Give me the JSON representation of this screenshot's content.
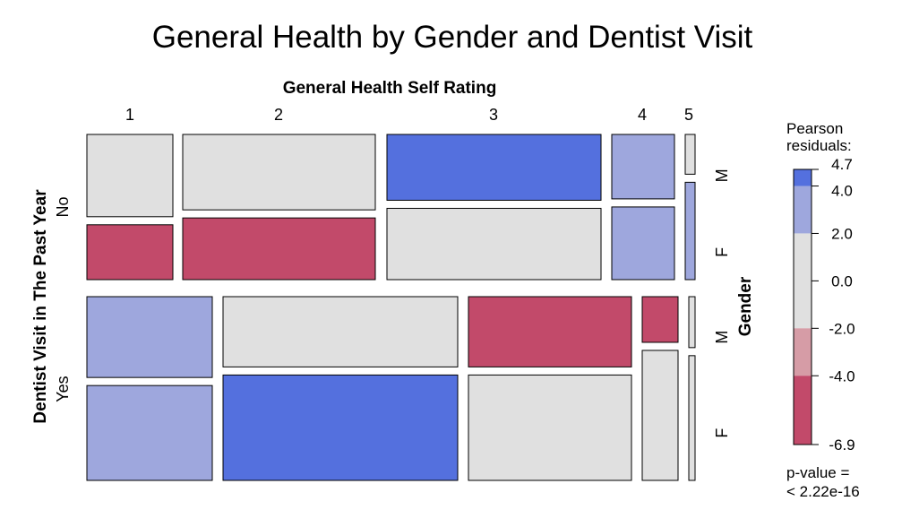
{
  "chart_data": {
    "type": "mosaic",
    "title": "General Health by Gender and Dentist Visit",
    "top_axis_label": "General Health Self Rating",
    "left_axis_label": "Dentist Visit in The Past Year",
    "right_axis_label": "Gender",
    "columns": [
      "1",
      "2",
      "3",
      "4",
      "5"
    ],
    "rows": [
      "No",
      "Yes"
    ],
    "genders": [
      "M",
      "F"
    ],
    "residual_colors": {
      "strong_positive": "#5470de",
      "positive": "#9ea7dd",
      "neutral": "#e0e0e0",
      "negative": "#d69ca6",
      "strong_negative": "#c24a6a"
    },
    "panels": [
      {
        "row": "No",
        "cells": [
          {
            "column": "1",
            "M": {
              "share": 0.6,
              "residual": "neutral"
            },
            "F": {
              "share": 0.4,
              "residual": "strong_negative"
            }
          },
          {
            "column": "2",
            "M": {
              "share": 0.55,
              "residual": "neutral"
            },
            "F": {
              "share": 0.45,
              "residual": "strong_negative"
            }
          },
          {
            "column": "3",
            "M": {
              "share": 0.48,
              "residual": "strong_positive"
            },
            "F": {
              "share": 0.52,
              "residual": "neutral"
            }
          },
          {
            "column": "4",
            "M": {
              "share": 0.47,
              "residual": "positive"
            },
            "F": {
              "share": 0.53,
              "residual": "positive"
            }
          },
          {
            "column": "5",
            "M": {
              "share": 0.29,
              "residual": "neutral"
            },
            "F": {
              "share": 0.71,
              "residual": "positive"
            }
          }
        ]
      },
      {
        "row": "Yes",
        "cells": [
          {
            "column": "1",
            "M": {
              "share": 0.46,
              "residual": "positive"
            },
            "F": {
              "share": 0.54,
              "residual": "positive"
            }
          },
          {
            "column": "2",
            "M": {
              "share": 0.4,
              "residual": "neutral"
            },
            "F": {
              "share": 0.6,
              "residual": "strong_positive"
            }
          },
          {
            "column": "3",
            "M": {
              "share": 0.4,
              "residual": "strong_negative"
            },
            "F": {
              "share": 0.6,
              "residual": "neutral"
            }
          },
          {
            "column": "4",
            "M": {
              "share": 0.26,
              "residual": "strong_negative"
            },
            "F": {
              "share": 0.74,
              "residual": "neutral"
            }
          },
          {
            "column": "5",
            "M": {
              "share": 0.29,
              "residual": "neutral"
            },
            "F": {
              "share": 0.71,
              "residual": "neutral"
            }
          }
        ]
      }
    ],
    "legend": {
      "title_line1": "Pearson",
      "title_line2": "residuals:",
      "range": [
        -6.9,
        4.7
      ],
      "ticks": [
        4.7,
        4.0,
        2.0,
        0.0,
        -2.0,
        -4.0,
        -6.9
      ],
      "tick_labels": [
        "4.7",
        "4.0",
        "2.0",
        "0.0",
        "-2.0",
        "-4.0",
        "-6.9"
      ],
      "bands": [
        {
          "from": 4.0,
          "to": 4.7,
          "color": "#5470de"
        },
        {
          "from": 2.0,
          "to": 4.0,
          "color": "#9ea7dd"
        },
        {
          "from": -2.0,
          "to": 2.0,
          "color": "#e0e0e0"
        },
        {
          "from": -4.0,
          "to": -2.0,
          "color": "#d69ca6"
        },
        {
          "from": -6.9,
          "to": -4.0,
          "color": "#c24a6a"
        }
      ]
    },
    "p_value_line1": "p-value =",
    "p_value_line2": "< 2.22e-16"
  }
}
